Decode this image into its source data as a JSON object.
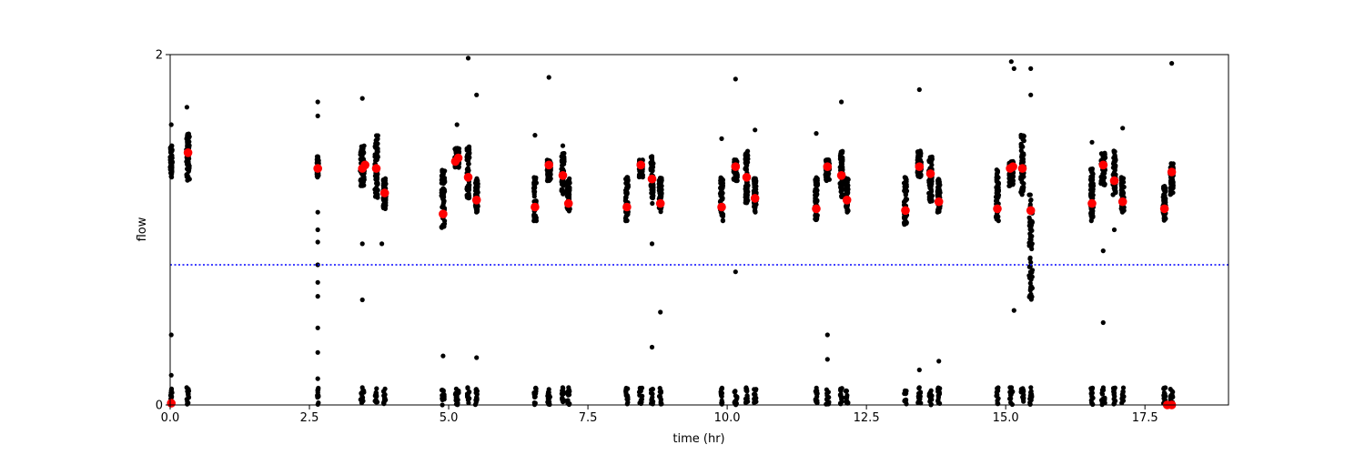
{
  "chart_data": {
    "type": "scatter",
    "xlabel": "time (hr)",
    "ylabel": "flow",
    "xlim": [
      0,
      19
    ],
    "ylim": [
      0,
      2
    ],
    "xticks": [
      0.0,
      2.5,
      5.0,
      7.5,
      10.0,
      12.5,
      15.0,
      17.5
    ],
    "xtick_labels": [
      "0.0",
      "2.5",
      "5.0",
      "7.5",
      "10.0",
      "12.5",
      "15.0",
      "17.5"
    ],
    "yticks": [
      0,
      2
    ],
    "ytick_labels": [
      "0",
      "2"
    ],
    "grid": false,
    "threshold": {
      "y": 0.8,
      "color": "#0000ff",
      "style": "dotted"
    },
    "colors": {
      "raw": "#000000",
      "highlight": "#ff0000"
    },
    "clusters": [
      {
        "x": 0.02,
        "width": 0.04,
        "low": 1.3,
        "high": 1.48,
        "lowBand": true
      },
      {
        "x": 0.32,
        "width": 0.06,
        "low": 1.28,
        "high": 1.55,
        "lowBand": true
      },
      {
        "x": 2.65,
        "width": 0.03,
        "low": 1.3,
        "high": 1.42,
        "lowBand": true
      },
      {
        "x": 3.45,
        "width": 0.08,
        "low": 1.25,
        "high": 1.48,
        "lowBand": true
      },
      {
        "x": 3.7,
        "width": 0.06,
        "low": 1.18,
        "high": 1.55,
        "lowBand": true
      },
      {
        "x": 3.85,
        "width": 0.05,
        "low": 1.12,
        "high": 1.3,
        "lowBand": true
      },
      {
        "x": 4.9,
        "width": 0.06,
        "low": 1.0,
        "high": 1.35,
        "lowBand": true
      },
      {
        "x": 5.15,
        "width": 0.08,
        "low": 1.35,
        "high": 1.47,
        "lowBand": true
      },
      {
        "x": 5.35,
        "width": 0.05,
        "low": 1.18,
        "high": 1.48,
        "lowBand": true
      },
      {
        "x": 5.5,
        "width": 0.05,
        "low": 1.1,
        "high": 1.3,
        "lowBand": true
      },
      {
        "x": 6.55,
        "width": 0.05,
        "low": 1.05,
        "high": 1.3,
        "lowBand": true
      },
      {
        "x": 6.8,
        "width": 0.07,
        "low": 1.28,
        "high": 1.4,
        "lowBand": true
      },
      {
        "x": 7.05,
        "width": 0.05,
        "low": 1.2,
        "high": 1.45,
        "lowBand": true
      },
      {
        "x": 7.15,
        "width": 0.05,
        "low": 1.1,
        "high": 1.3,
        "lowBand": true
      },
      {
        "x": 8.2,
        "width": 0.05,
        "low": 1.05,
        "high": 1.3,
        "lowBand": true
      },
      {
        "x": 8.45,
        "width": 0.07,
        "low": 1.3,
        "high": 1.4,
        "lowBand": true
      },
      {
        "x": 8.65,
        "width": 0.05,
        "low": 1.15,
        "high": 1.42,
        "lowBand": true
      },
      {
        "x": 8.8,
        "width": 0.05,
        "low": 1.1,
        "high": 1.3,
        "lowBand": true
      },
      {
        "x": 9.9,
        "width": 0.05,
        "low": 1.05,
        "high": 1.3,
        "lowBand": true
      },
      {
        "x": 10.15,
        "width": 0.07,
        "low": 1.28,
        "high": 1.4,
        "lowBand": true
      },
      {
        "x": 10.35,
        "width": 0.05,
        "low": 1.15,
        "high": 1.45,
        "lowBand": true
      },
      {
        "x": 10.5,
        "width": 0.05,
        "low": 1.1,
        "high": 1.3,
        "lowBand": true
      },
      {
        "x": 11.6,
        "width": 0.05,
        "low": 1.05,
        "high": 1.3,
        "lowBand": true
      },
      {
        "x": 11.8,
        "width": 0.07,
        "low": 1.28,
        "high": 1.4,
        "lowBand": true
      },
      {
        "x": 12.05,
        "width": 0.05,
        "low": 1.18,
        "high": 1.45,
        "lowBand": true
      },
      {
        "x": 12.15,
        "width": 0.05,
        "low": 1.1,
        "high": 1.3,
        "lowBand": true
      },
      {
        "x": 13.2,
        "width": 0.05,
        "low": 1.03,
        "high": 1.3,
        "lowBand": true
      },
      {
        "x": 13.45,
        "width": 0.07,
        "low": 1.3,
        "high": 1.45,
        "lowBand": true
      },
      {
        "x": 13.65,
        "width": 0.06,
        "low": 1.15,
        "high": 1.42,
        "lowBand": true
      },
      {
        "x": 13.8,
        "width": 0.05,
        "low": 1.1,
        "high": 1.3,
        "lowBand": true
      },
      {
        "x": 14.85,
        "width": 0.05,
        "low": 1.05,
        "high": 1.35,
        "lowBand": true
      },
      {
        "x": 15.1,
        "width": 0.08,
        "low": 1.25,
        "high": 1.4,
        "lowBand": true
      },
      {
        "x": 15.3,
        "width": 0.06,
        "low": 1.2,
        "high": 1.55,
        "lowBand": true
      },
      {
        "x": 15.45,
        "width": 0.06,
        "low": 0.6,
        "high": 1.2,
        "lowBand": true
      },
      {
        "x": 16.55,
        "width": 0.05,
        "low": 1.05,
        "high": 1.35,
        "lowBand": true
      },
      {
        "x": 16.75,
        "width": 0.08,
        "low": 1.25,
        "high": 1.45,
        "lowBand": true
      },
      {
        "x": 16.95,
        "width": 0.05,
        "low": 1.2,
        "high": 1.45,
        "lowBand": true
      },
      {
        "x": 17.1,
        "width": 0.05,
        "low": 1.1,
        "high": 1.3,
        "lowBand": true
      },
      {
        "x": 17.85,
        "width": 0.05,
        "low": 1.05,
        "high": 1.25,
        "lowBand": true
      },
      {
        "x": 17.98,
        "width": 0.06,
        "low": 1.2,
        "high": 1.38,
        "lowBand": true
      }
    ],
    "outliers": [
      [
        0.02,
        1.6
      ],
      [
        0.02,
        0.4
      ],
      [
        0.02,
        0.17
      ],
      [
        0.02,
        0.08
      ],
      [
        0.3,
        1.7
      ],
      [
        2.65,
        1.73
      ],
      [
        2.65,
        1.65
      ],
      [
        2.65,
        1.1
      ],
      [
        2.65,
        1.0
      ],
      [
        2.65,
        0.93
      ],
      [
        2.65,
        0.8
      ],
      [
        2.65,
        0.7
      ],
      [
        2.65,
        0.62
      ],
      [
        2.65,
        0.44
      ],
      [
        2.65,
        0.3
      ],
      [
        2.65,
        0.15
      ],
      [
        3.45,
        1.75
      ],
      [
        3.45,
        0.92
      ],
      [
        3.45,
        0.6
      ],
      [
        3.8,
        0.92
      ],
      [
        4.9,
        0.28
      ],
      [
        5.15,
        1.6
      ],
      [
        5.35,
        1.98
      ],
      [
        5.5,
        1.77
      ],
      [
        5.5,
        0.27
      ],
      [
        6.55,
        1.54
      ],
      [
        6.8,
        1.87
      ],
      [
        7.05,
        1.48
      ],
      [
        8.65,
        0.92
      ],
      [
        8.65,
        0.33
      ],
      [
        8.8,
        0.53
      ],
      [
        9.9,
        1.52
      ],
      [
        10.15,
        0.76
      ],
      [
        10.15,
        1.86
      ],
      [
        10.5,
        1.57
      ],
      [
        11.6,
        1.55
      ],
      [
        11.8,
        0.4
      ],
      [
        11.8,
        0.26
      ],
      [
        12.05,
        1.73
      ],
      [
        13.45,
        1.8
      ],
      [
        13.45,
        0.2
      ],
      [
        13.8,
        0.25
      ],
      [
        15.1,
        1.96
      ],
      [
        15.15,
        1.92
      ],
      [
        15.15,
        0.54
      ],
      [
        15.45,
        1.92
      ],
      [
        15.45,
        1.77
      ],
      [
        16.55,
        1.5
      ],
      [
        16.75,
        0.47
      ],
      [
        16.75,
        0.88
      ],
      [
        16.95,
        1.0
      ],
      [
        17.1,
        1.58
      ],
      [
        17.98,
        1.95
      ]
    ],
    "highlighted_points": [
      {
        "x": 0.32,
        "y": 1.44
      },
      {
        "x": 2.65,
        "y": 1.35
      },
      {
        "x": 3.45,
        "y": 1.35
      },
      {
        "x": 3.5,
        "y": 1.37
      },
      {
        "x": 3.7,
        "y": 1.35
      },
      {
        "x": 3.85,
        "y": 1.21
      },
      {
        "x": 4.9,
        "y": 1.09
      },
      {
        "x": 5.12,
        "y": 1.39
      },
      {
        "x": 5.17,
        "y": 1.41
      },
      {
        "x": 5.35,
        "y": 1.3
      },
      {
        "x": 5.5,
        "y": 1.17
      },
      {
        "x": 6.55,
        "y": 1.13
      },
      {
        "x": 6.8,
        "y": 1.37
      },
      {
        "x": 7.05,
        "y": 1.31
      },
      {
        "x": 7.15,
        "y": 1.15
      },
      {
        "x": 8.2,
        "y": 1.13
      },
      {
        "x": 8.45,
        "y": 1.37
      },
      {
        "x": 8.65,
        "y": 1.29
      },
      {
        "x": 8.8,
        "y": 1.15
      },
      {
        "x": 9.9,
        "y": 1.13
      },
      {
        "x": 10.15,
        "y": 1.36
      },
      {
        "x": 10.35,
        "y": 1.3
      },
      {
        "x": 10.5,
        "y": 1.18
      },
      {
        "x": 11.6,
        "y": 1.12
      },
      {
        "x": 11.8,
        "y": 1.36
      },
      {
        "x": 12.05,
        "y": 1.31
      },
      {
        "x": 12.15,
        "y": 1.17
      },
      {
        "x": 13.2,
        "y": 1.11
      },
      {
        "x": 13.45,
        "y": 1.36
      },
      {
        "x": 13.65,
        "y": 1.32
      },
      {
        "x": 13.8,
        "y": 1.16
      },
      {
        "x": 14.85,
        "y": 1.12
      },
      {
        "x": 15.08,
        "y": 1.35
      },
      {
        "x": 15.13,
        "y": 1.36
      },
      {
        "x": 15.3,
        "y": 1.35
      },
      {
        "x": 15.45,
        "y": 1.11
      },
      {
        "x": 16.55,
        "y": 1.15
      },
      {
        "x": 16.75,
        "y": 1.37
      },
      {
        "x": 16.95,
        "y": 1.28
      },
      {
        "x": 17.1,
        "y": 1.16
      },
      {
        "x": 17.85,
        "y": 1.12
      },
      {
        "x": 17.98,
        "y": 1.33
      },
      {
        "x": 0.02,
        "y": 0.01
      },
      {
        "x": 17.9,
        "y": 0.0
      },
      {
        "x": 17.98,
        "y": 0.0
      }
    ]
  }
}
